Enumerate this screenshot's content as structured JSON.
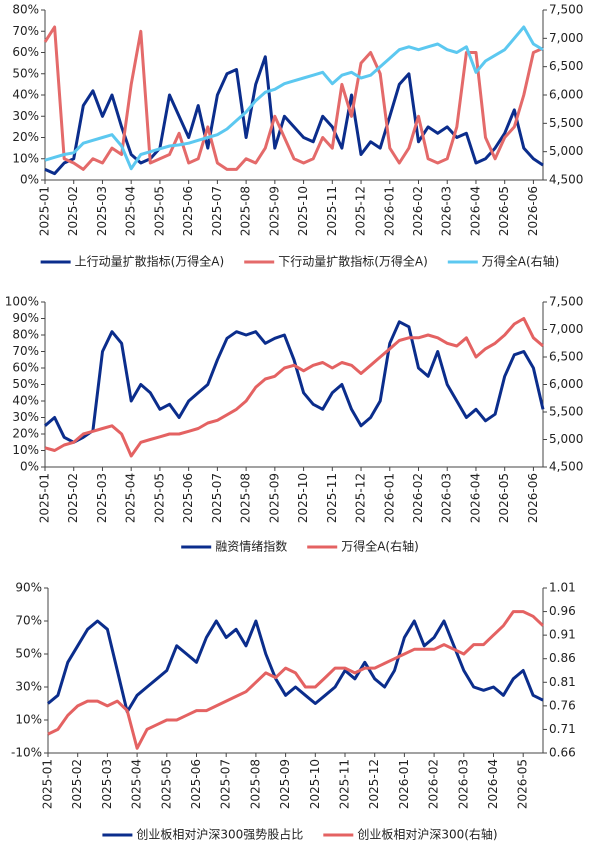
{
  "chart_data": [
    {
      "type": "line",
      "categories": [
        "2025-01",
        null,
        null,
        "2025-02",
        null,
        null,
        "2025-03",
        null,
        null,
        "2025-04",
        null,
        null,
        "2025-05",
        null,
        null,
        "2025-06",
        null,
        null,
        "2025-07",
        null,
        null,
        "2025-08",
        null,
        null,
        "2025-09",
        null,
        null,
        "2025-10",
        null,
        null,
        "2025-11",
        null,
        null,
        "2025-12",
        null,
        null,
        "2026-01",
        null,
        null,
        "2026-02",
        null,
        null,
        "2026-03",
        null,
        null,
        "2026-04",
        null,
        null,
        "2026-05",
        null,
        null,
        "2026-06",
        null
      ],
      "ylim": [
        0,
        80
      ],
      "yticks": [
        {
          "value": 0,
          "label": "0%"
        },
        {
          "value": 10,
          "label": "10%"
        },
        {
          "value": 20,
          "label": "20%"
        },
        {
          "value": 30,
          "label": "30%"
        },
        {
          "value": 40,
          "label": "40%"
        },
        {
          "value": 50,
          "label": "50%"
        },
        {
          "value": 60,
          "label": "60%"
        },
        {
          "value": 70,
          "label": "70%"
        },
        {
          "value": 80,
          "label": "80%"
        }
      ],
      "y2lim": [
        4500,
        7500
      ],
      "y2ticks": [
        {
          "value": 4500,
          "label": "4,500"
        },
        {
          "value": 5000,
          "label": "5,000"
        },
        {
          "value": 5500,
          "label": "5,500"
        },
        {
          "value": 6000,
          "label": "6,000"
        },
        {
          "value": 6500,
          "label": "6,500"
        },
        {
          "value": 7000,
          "label": "7,000"
        },
        {
          "value": 7500,
          "label": "7,500"
        }
      ],
      "series": [
        {
          "name": "上行动量扩散指标(万得全A)",
          "color": "#0b2d8c",
          "values": [
            5,
            3,
            8,
            10,
            35,
            42,
            30,
            40,
            25,
            12,
            8,
            10,
            15,
            40,
            30,
            20,
            35,
            15,
            40,
            50,
            52,
            20,
            45,
            58,
            15,
            30,
            25,
            20,
            18,
            30,
            25,
            15,
            40,
            12,
            18,
            15,
            30,
            45,
            50,
            18,
            25,
            22,
            25,
            20,
            22,
            8,
            10,
            15,
            22,
            33,
            15,
            10,
            7
          ]
        },
        {
          "name": "下行动量扩散指标(万得全A)",
          "color": "#e46a6a",
          "values": [
            65,
            72,
            10,
            8,
            5,
            10,
            8,
            15,
            12,
            45,
            70,
            8,
            10,
            12,
            22,
            8,
            10,
            25,
            8,
            5,
            5,
            10,
            8,
            15,
            30,
            20,
            10,
            8,
            10,
            20,
            15,
            45,
            30,
            55,
            60,
            50,
            15,
            8,
            15,
            30,
            10,
            8,
            10,
            25,
            60,
            60,
            20,
            10,
            20,
            25,
            40,
            60,
            62
          ]
        },
        {
          "name": "万得全A(右轴)",
          "color": "#5cc8f0",
          "axis": "y2",
          "values": [
            4850,
            4900,
            4950,
            4980,
            5150,
            5200,
            5250,
            5300,
            5100,
            4700,
            4950,
            5000,
            5050,
            5100,
            5120,
            5150,
            5200,
            5250,
            5300,
            5400,
            5550,
            5700,
            5900,
            6050,
            6100,
            6200,
            6250,
            6300,
            6350,
            6400,
            6200,
            6350,
            6400,
            6300,
            6350,
            6500,
            6650,
            6800,
            6850,
            6800,
            6850,
            6900,
            6800,
            6750,
            6850,
            6400,
            6600,
            6700,
            6800,
            7000,
            7200,
            6900,
            6800
          ]
        }
      ]
    },
    {
      "type": "line",
      "categories": [
        "2025-01",
        null,
        null,
        "2025-02",
        null,
        null,
        "2025-03",
        null,
        null,
        "2025-04",
        null,
        null,
        "2025-05",
        null,
        null,
        "2025-06",
        null,
        null,
        "2025-07",
        null,
        null,
        "2025-08",
        null,
        null,
        "2025-09",
        null,
        null,
        "2025-10",
        null,
        null,
        "2025-11",
        null,
        null,
        "2025-12",
        null,
        null,
        "2026-01",
        null,
        null,
        "2026-02",
        null,
        null,
        "2026-03",
        null,
        null,
        "2026-04",
        null,
        null,
        "2026-05",
        null,
        null,
        "2026-06",
        null
      ],
      "ylim": [
        0,
        100
      ],
      "yticks": [
        {
          "value": 0,
          "label": "0%"
        },
        {
          "value": 10,
          "label": "10%"
        },
        {
          "value": 20,
          "label": "20%"
        },
        {
          "value": 30,
          "label": "30%"
        },
        {
          "value": 40,
          "label": "40%"
        },
        {
          "value": 50,
          "label": "50%"
        },
        {
          "value": 60,
          "label": "60%"
        },
        {
          "value": 70,
          "label": "70%"
        },
        {
          "value": 80,
          "label": "80%"
        },
        {
          "value": 90,
          "label": "90%"
        },
        {
          "value": 100,
          "label": "100%"
        }
      ],
      "y2lim": [
        4500,
        7500
      ],
      "y2ticks": [
        {
          "value": 4500,
          "label": "4,500"
        },
        {
          "value": 5000,
          "label": "5,000"
        },
        {
          "value": 5500,
          "label": "5,500"
        },
        {
          "value": 6000,
          "label": "6,000"
        },
        {
          "value": 6500,
          "label": "6,500"
        },
        {
          "value": 7000,
          "label": "7,000"
        },
        {
          "value": 7500,
          "label": "7,500"
        }
      ],
      "series": [
        {
          "name": "融资情绪指数",
          "color": "#0b2d8c",
          "values": [
            25,
            30,
            18,
            15,
            18,
            22,
            70,
            82,
            75,
            40,
            50,
            45,
            35,
            38,
            30,
            40,
            45,
            50,
            65,
            78,
            82,
            80,
            82,
            75,
            78,
            80,
            65,
            45,
            38,
            35,
            45,
            50,
            35,
            25,
            30,
            40,
            75,
            88,
            85,
            60,
            55,
            70,
            50,
            40,
            30,
            35,
            28,
            32,
            55,
            68,
            70,
            60,
            35
          ]
        },
        {
          "name": "万得全A(右轴)",
          "color": "#e46262",
          "axis": "y2",
          "values": [
            4850,
            4800,
            4900,
            4950,
            5100,
            5150,
            5200,
            5250,
            5100,
            4700,
            4950,
            5000,
            5050,
            5100,
            5100,
            5150,
            5200,
            5300,
            5350,
            5450,
            5550,
            5700,
            5950,
            6100,
            6150,
            6300,
            6350,
            6250,
            6350,
            6400,
            6300,
            6400,
            6350,
            6200,
            6350,
            6500,
            6650,
            6800,
            6850,
            6850,
            6900,
            6850,
            6750,
            6700,
            6850,
            6500,
            6650,
            6750,
            6900,
            7100,
            7200,
            6850,
            6700
          ]
        }
      ]
    },
    {
      "type": "line",
      "categories": [
        "2025-01",
        null,
        null,
        "2025-02",
        null,
        null,
        "2025-03",
        null,
        null,
        "2025-04",
        null,
        null,
        "2025-05",
        null,
        null,
        "2025-06",
        null,
        null,
        "2025-07",
        null,
        null,
        "2025-08",
        null,
        null,
        "2025-09",
        null,
        null,
        "2025-10",
        null,
        null,
        "2025-11",
        null,
        null,
        "2025-12",
        null,
        null,
        "2026-01",
        null,
        null,
        "2026-02",
        null,
        null,
        "2026-03",
        null,
        null,
        "2026-04",
        null,
        null,
        "2026-05",
        null,
        null
      ],
      "ylim": [
        -10,
        90
      ],
      "yticks": [
        {
          "value": -10,
          "label": "-10%"
        },
        {
          "value": 10,
          "label": "10%"
        },
        {
          "value": 30,
          "label": "30%"
        },
        {
          "value": 50,
          "label": "50%"
        },
        {
          "value": 70,
          "label": "70%"
        },
        {
          "value": 90,
          "label": "90%"
        }
      ],
      "y2lim": [
        0.66,
        1.01
      ],
      "y2ticks": [
        0.66,
        0.71,
        0.76,
        0.81,
        0.86,
        0.91,
        0.96,
        1.01
      ],
      "series": [
        {
          "name": "创业板相对沪深300强势股占比",
          "color": "#0b2d8c",
          "values": [
            20,
            25,
            45,
            55,
            65,
            70,
            65,
            40,
            15,
            25,
            30,
            35,
            40,
            55,
            50,
            45,
            60,
            70,
            60,
            65,
            55,
            70,
            50,
            35,
            25,
            30,
            25,
            20,
            25,
            30,
            40,
            35,
            45,
            35,
            30,
            40,
            60,
            70,
            55,
            60,
            70,
            55,
            40,
            30,
            28,
            30,
            25,
            35,
            40,
            25,
            22
          ]
        },
        {
          "name": "创业板相对沪深300(右轴)",
          "color": "#e46262",
          "axis": "y2",
          "values": [
            0.7,
            0.71,
            0.74,
            0.76,
            0.77,
            0.77,
            0.76,
            0.77,
            0.75,
            0.67,
            0.71,
            0.72,
            0.73,
            0.73,
            0.74,
            0.75,
            0.75,
            0.76,
            0.77,
            0.78,
            0.79,
            0.81,
            0.83,
            0.82,
            0.84,
            0.83,
            0.8,
            0.8,
            0.82,
            0.84,
            0.84,
            0.83,
            0.84,
            0.84,
            0.85,
            0.86,
            0.87,
            0.88,
            0.88,
            0.88,
            0.89,
            0.88,
            0.87,
            0.89,
            0.89,
            0.91,
            0.93,
            0.96,
            0.96,
            0.95,
            0.93
          ]
        }
      ]
    }
  ]
}
